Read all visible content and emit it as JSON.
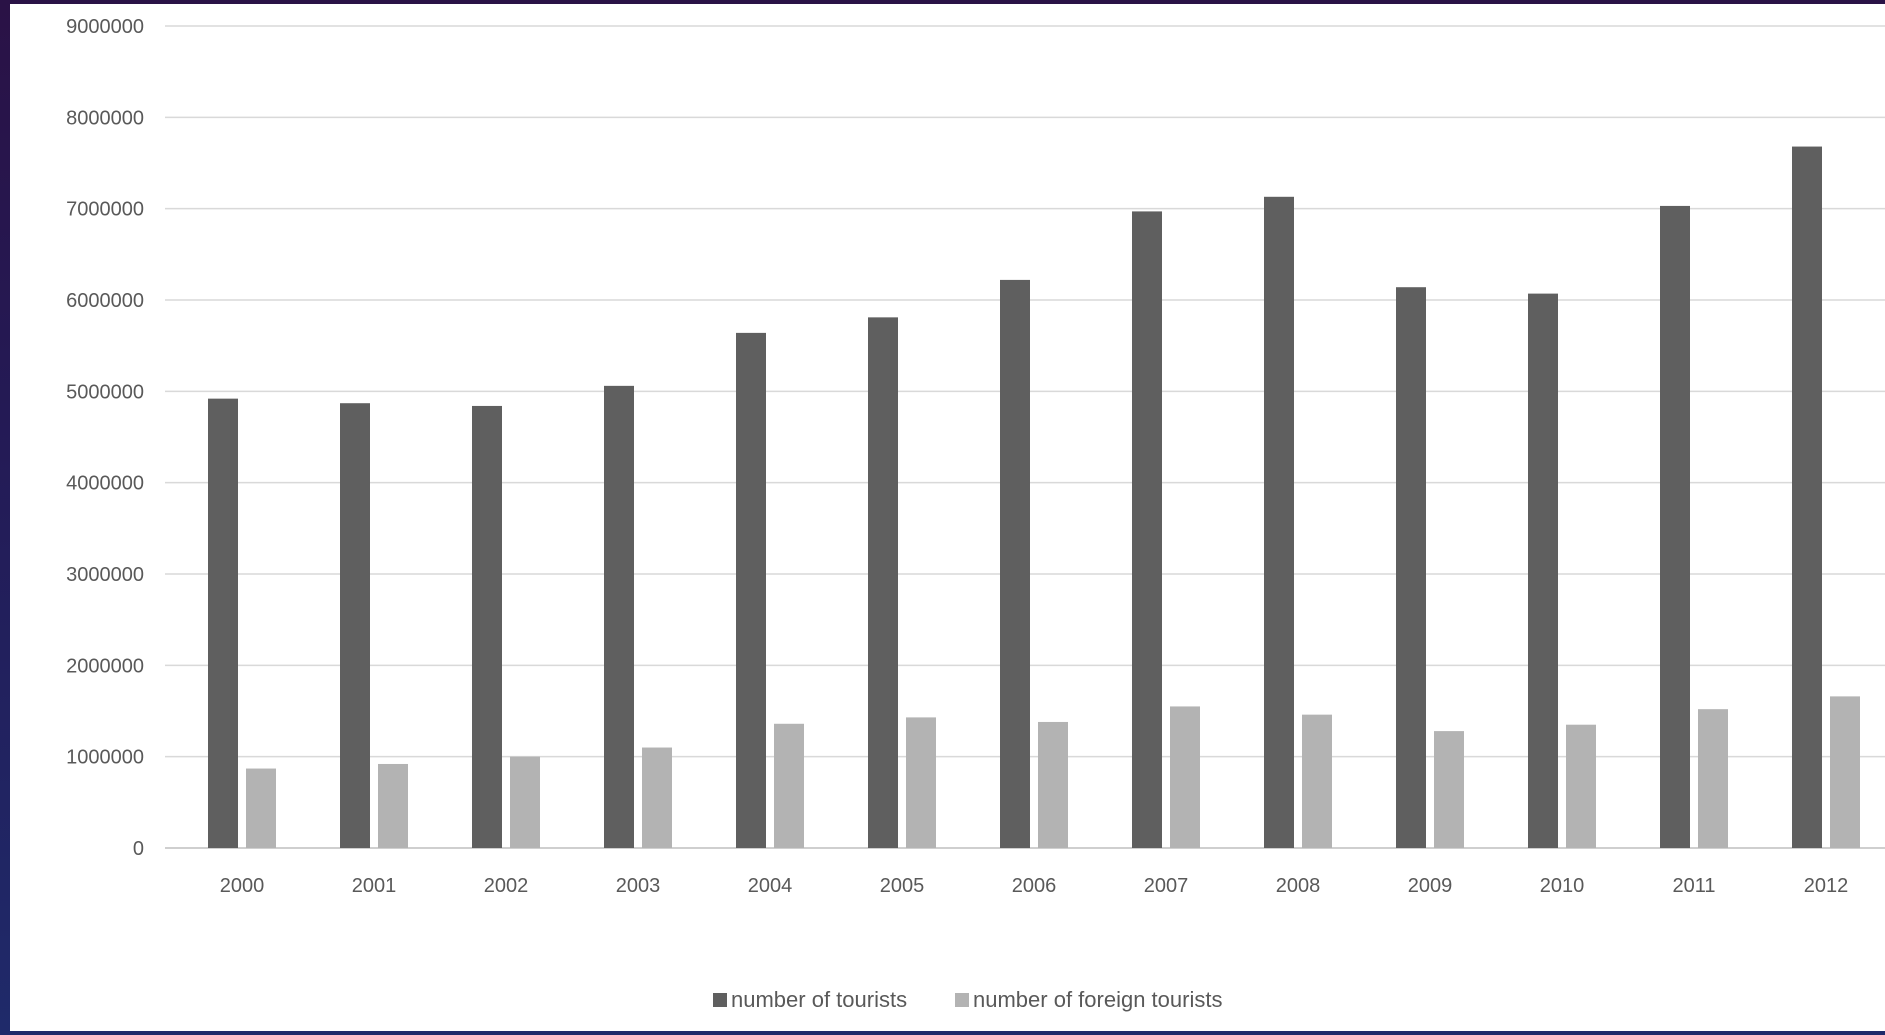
{
  "chart_data": {
    "type": "bar",
    "title": "",
    "xlabel": "",
    "ylabel": "",
    "ylim": [
      0,
      9000000
    ],
    "yticks": [
      0,
      1000000,
      2000000,
      3000000,
      4000000,
      5000000,
      6000000,
      7000000,
      8000000,
      9000000
    ],
    "grid": true,
    "legend_position": "bottom",
    "categories": [
      "2000",
      "2001",
      "2002",
      "2003",
      "2004",
      "2005",
      "2006",
      "2007",
      "2008",
      "2009",
      "2010",
      "2011",
      "2012"
    ],
    "series": [
      {
        "name": "number of tourists",
        "color": "#5f5f5f",
        "values": [
          4920000,
          4870000,
          4840000,
          5060000,
          5640000,
          5810000,
          6220000,
          6970000,
          7130000,
          6140000,
          6070000,
          7030000,
          7680000
        ]
      },
      {
        "name": "number of foreign tourists",
        "color": "#b3b3b3",
        "values": [
          870000,
          920000,
          1000000,
          1100000,
          1360000,
          1430000,
          1380000,
          1550000,
          1460000,
          1280000,
          1350000,
          1520000,
          1660000
        ]
      }
    ]
  }
}
